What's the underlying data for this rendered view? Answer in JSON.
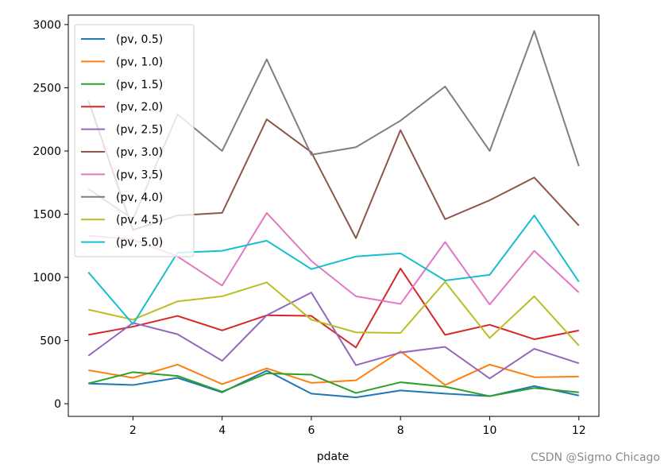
{
  "chart_data": {
    "type": "line",
    "title": "",
    "xlabel": "pdate",
    "ylabel": "",
    "xlim": [
      0.55,
      12.45
    ],
    "ylim": [
      -100,
      3075
    ],
    "xticks": [
      2,
      4,
      6,
      8,
      10,
      12
    ],
    "yticks": [
      0,
      500,
      1000,
      1500,
      2000,
      2500,
      3000
    ],
    "legend_position": "top-left",
    "x": [
      1,
      2,
      3,
      4,
      5,
      6,
      7,
      8,
      9,
      10,
      11,
      12
    ],
    "series": [
      {
        "name": "(pv, 0.5)",
        "color": "#1f77b4",
        "values": [
          160,
          148,
          205,
          90,
          262,
          80,
          50,
          105,
          80,
          60,
          140,
          65
        ]
      },
      {
        "name": "(pv, 1.0)",
        "color": "#ff7f0e",
        "values": [
          265,
          205,
          310,
          155,
          280,
          165,
          185,
          415,
          148,
          310,
          210,
          215
        ]
      },
      {
        "name": "(pv, 1.5)",
        "color": "#2ca02c",
        "values": [
          160,
          250,
          220,
          95,
          240,
          230,
          85,
          170,
          135,
          60,
          125,
          90
        ]
      },
      {
        "name": "(pv, 2.0)",
        "color": "#d62728",
        "values": [
          545,
          610,
          695,
          580,
          700,
          695,
          445,
          1070,
          545,
          625,
          510,
          580
        ]
      },
      {
        "name": "(pv, 2.5)",
        "color": "#9467bd",
        "values": [
          380,
          640,
          550,
          340,
          700,
          880,
          305,
          405,
          450,
          200,
          435,
          320
        ]
      },
      {
        "name": "(pv, 3.0)",
        "color": "#8c564b",
        "values": [
          2400,
          1375,
          1490,
          1510,
          2250,
          1990,
          1310,
          2165,
          1460,
          1610,
          1790,
          1410
        ]
      },
      {
        "name": "(pv, 3.5)",
        "color": "#e377c2",
        "values": [
          1330,
          1300,
          1165,
          935,
          1510,
          1130,
          850,
          790,
          1280,
          785,
          1210,
          880
        ]
      },
      {
        "name": "(pv, 4.0)",
        "color": "#7f7f7f",
        "values": [
          1700,
          1460,
          2290,
          2000,
          2725,
          1970,
          2030,
          2240,
          2510,
          2000,
          2950,
          1880
        ]
      },
      {
        "name": "(pv, 4.5)",
        "color": "#bcbd22",
        "values": [
          745,
          665,
          810,
          850,
          960,
          665,
          565,
          560,
          965,
          520,
          850,
          460
        ]
      },
      {
        "name": "(pv, 5.0)",
        "color": "#17becf",
        "values": [
          1040,
          630,
          1195,
          1210,
          1290,
          1065,
          1165,
          1190,
          975,
          1020,
          1490,
          965
        ]
      }
    ]
  },
  "watermark": "CSDN @Sigmo Chicago"
}
